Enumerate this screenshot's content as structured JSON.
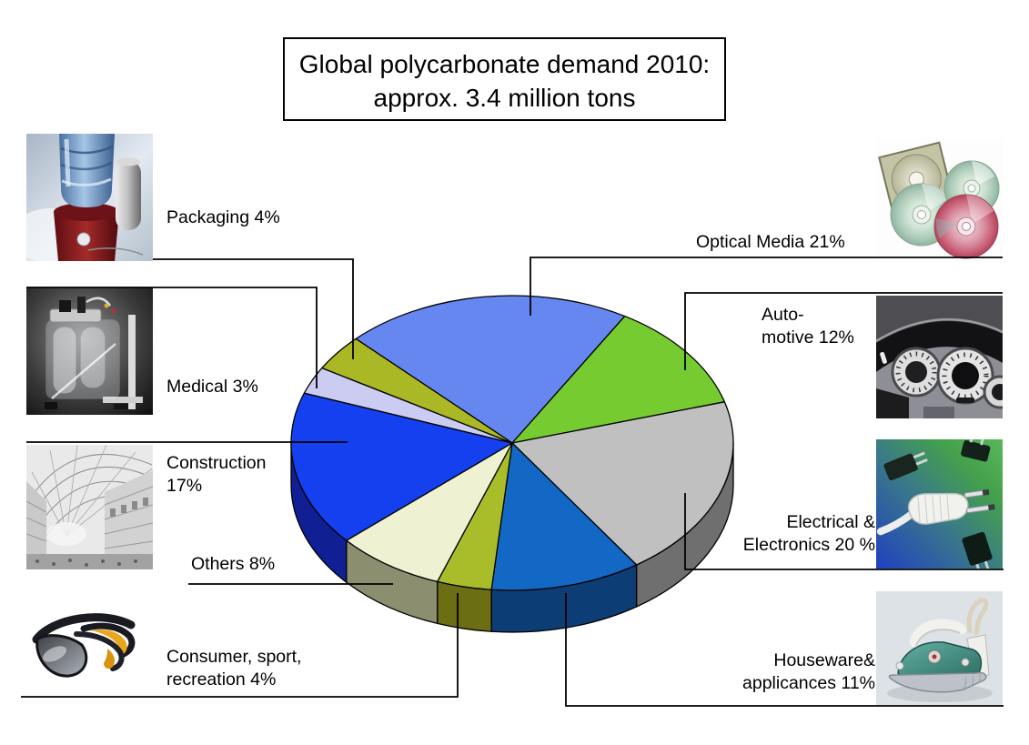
{
  "title": {
    "line1": "Global polycarbonate demand 2010:",
    "line2": "approx. 3.4 million tons"
  },
  "chart_data": {
    "type": "pie",
    "style": "3d-pie",
    "title": "Global polycarbonate demand 2010: approx. 3.4 million tons",
    "unit": "%",
    "start_angle_deg": -45,
    "clockwise": true,
    "slices": [
      {
        "id": "optical-media",
        "label": "Optical Media",
        "value": 21,
        "label_lines": [
          "Optical Media 21%"
        ],
        "color": "#6787f0",
        "side_color": "#4b64b4"
      },
      {
        "id": "automotive",
        "label": "Automotive",
        "value": 12,
        "label_lines": [
          "Auto-",
          "motive 12%"
        ],
        "color": "#76cb31",
        "side_color": "#4e8a1e"
      },
      {
        "id": "electrical-electronics",
        "label": "Electrical & Electronics",
        "value": 20,
        "label_lines": [
          "Electrical &",
          "Electronics 20 %"
        ],
        "color": "#c0c0c0",
        "side_color": "#6f6f6f"
      },
      {
        "id": "houseware-appliances",
        "label": "Houseware & appliances",
        "value": 11,
        "label_lines": [
          "Houseware&",
          "applicances 11%"
        ],
        "color": "#1268c4",
        "side_color": "#0c3d74"
      },
      {
        "id": "consumer-sport-recreation",
        "label": "Consumer, sport, recreation",
        "value": 4,
        "label_lines": [
          "Consumer, sport,",
          "recreation 4%"
        ],
        "color": "#a9bd2b",
        "side_color": "#6c6e13"
      },
      {
        "id": "others",
        "label": "Others",
        "value": 8,
        "label_lines": [
          "Others 8%"
        ],
        "color": "#eef2d2",
        "side_color": "#8c8e70"
      },
      {
        "id": "construction",
        "label": "Construction",
        "value": 17,
        "label_lines": [
          "Construction",
          "17%"
        ],
        "color": "#1540f0",
        "side_color": "#101f94"
      },
      {
        "id": "medical",
        "label": "Medical",
        "value": 3,
        "label_lines": [
          "Medical 3%"
        ],
        "color": "#ccccf2",
        "side_color": "#9a9ac0"
      },
      {
        "id": "packaging",
        "label": "Packaging",
        "value": 4,
        "label_lines": [
          "Packaging 4%"
        ],
        "color": "#a9b824",
        "side_color": "#787f12"
      }
    ]
  },
  "photos": [
    {
      "name": "water-bottle-photo",
      "depicts": "polycarbonate water bottle on red dispenser"
    },
    {
      "name": "medical-equipment-photo",
      "depicts": "laboratory medical apparatus"
    },
    {
      "name": "construction-photo",
      "depicts": "glass-roofed arcade building"
    },
    {
      "name": "sunglasses-photo",
      "depicts": "sport sunglasses"
    },
    {
      "name": "optical-media-photo",
      "depicts": "compact discs and cd case"
    },
    {
      "name": "car-dashboard-photo",
      "depicts": "automotive instrument cluster"
    },
    {
      "name": "electrical-plug-photo",
      "depicts": "power plug on circuit board"
    },
    {
      "name": "iron-photo",
      "depicts": "steam iron"
    }
  ]
}
